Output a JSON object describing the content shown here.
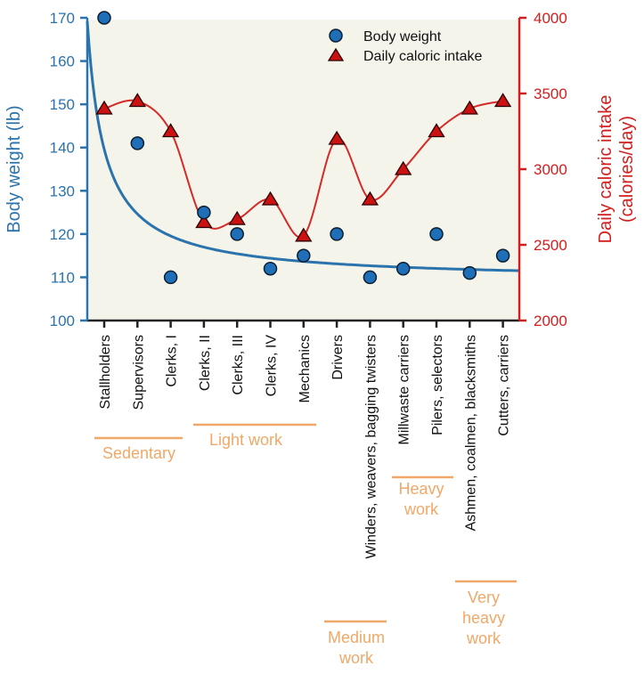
{
  "chart_data": {
    "type": "scatter",
    "title": "",
    "xlabel": "",
    "categories": [
      "Stallholders",
      "Supervisors",
      "Clerks, I",
      "Clerks, II",
      "Clerks, III",
      "Clerks, IV",
      "Mechanics",
      "Drivers",
      "Winders, weavers, bagging twisters",
      "Millwaste carriers",
      "Pilers, selectors",
      "Ashmen, coalmen, blacksmiths",
      "Cutters, carriers"
    ],
    "left_axis": {
      "label": "Body weight (lb)",
      "range": [
        100,
        170
      ],
      "ticks": [
        100,
        110,
        120,
        130,
        140,
        150,
        160,
        170
      ],
      "color": "#2a73ad"
    },
    "right_axis": {
      "label_line1": "Daily caloric intake",
      "label_line2": "(calories/day)",
      "range": [
        2000,
        4000
      ],
      "ticks": [
        2000,
        2500,
        3000,
        3500,
        4000
      ],
      "color": "#d21e1e"
    },
    "series": [
      {
        "name": "Body weight",
        "axis": "left",
        "marker": "circle",
        "color": "#1f6fb8",
        "values": [
          170,
          141,
          110,
          125,
          120,
          112,
          115,
          120,
          110,
          112,
          120,
          111,
          115
        ],
        "fit": "decaying curve from ~169 lb to ~111 lb"
      },
      {
        "name": "Daily caloric intake",
        "axis": "right",
        "marker": "triangle",
        "color": "#cc1111",
        "values": [
          3400,
          3450,
          3250,
          2650,
          2670,
          2800,
          2560,
          3200,
          2800,
          3000,
          3250,
          3400,
          3450
        ],
        "fit": "smooth curve through points"
      }
    ],
    "groups": [
      {
        "label_lines": [
          "Sedentary"
        ],
        "from": 0,
        "to": 2
      },
      {
        "label_lines": [
          "Light work"
        ],
        "from": 3,
        "to": 6
      },
      {
        "label_lines": [
          "Medium",
          "work"
        ],
        "from": 7,
        "to": 8
      },
      {
        "label_lines": [
          "Heavy",
          "work"
        ],
        "from": 9,
        "to": 10
      },
      {
        "label_lines": [
          "Very",
          "heavy",
          "work"
        ],
        "from": 11,
        "to": 12
      }
    ],
    "legend": {
      "position": "top-right",
      "entries": [
        "Body weight",
        "Daily caloric intake"
      ]
    },
    "grid": false,
    "background_color": "#f5f4ea"
  }
}
